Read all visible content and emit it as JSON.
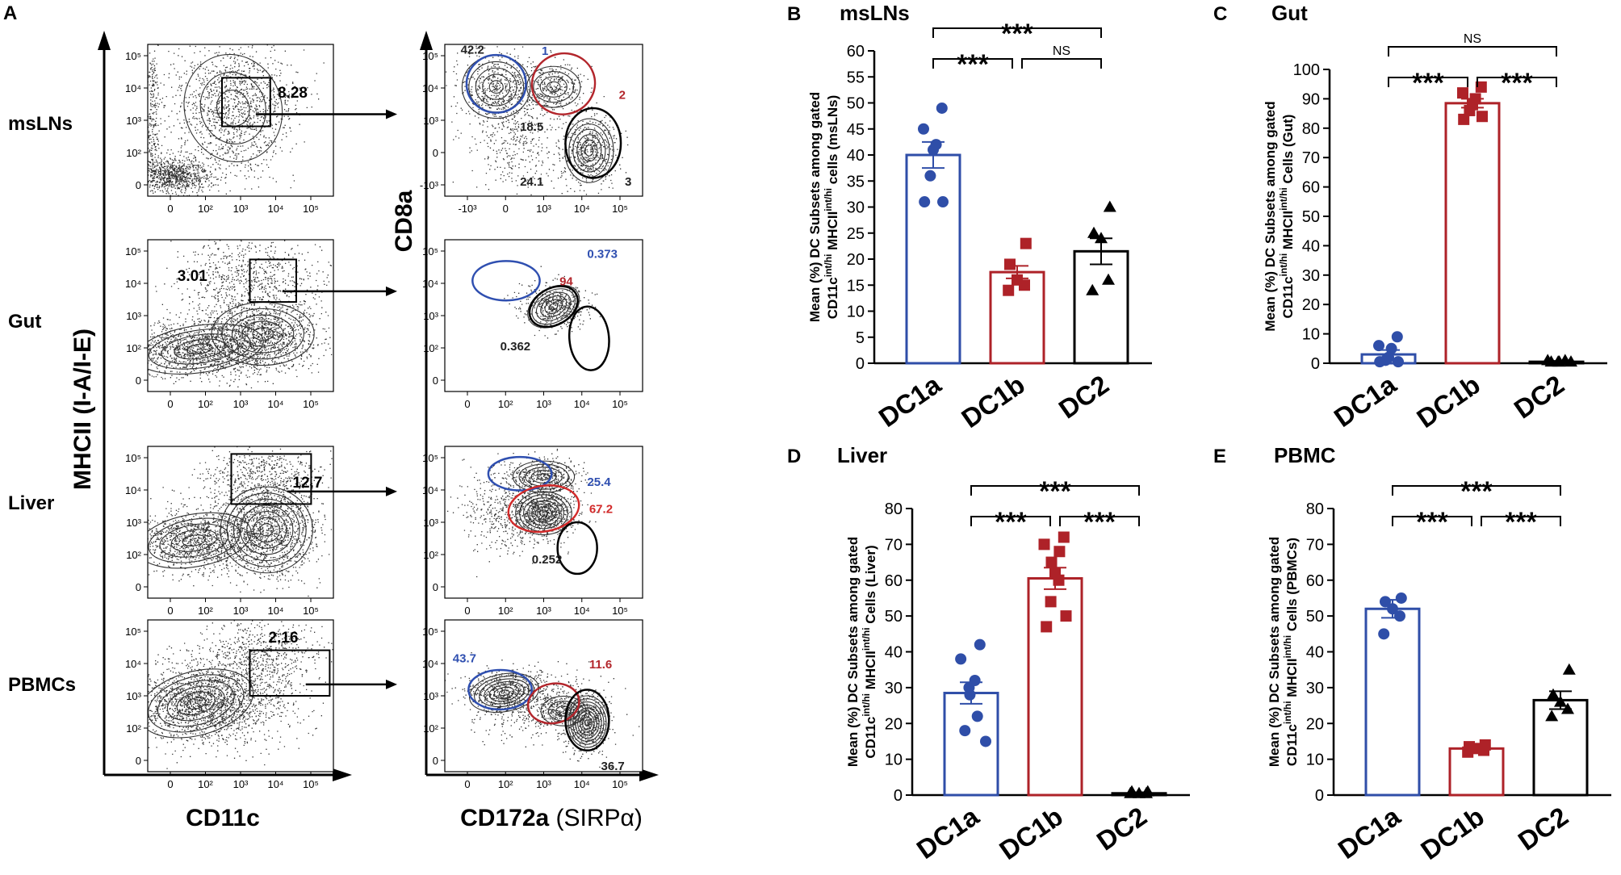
{
  "panel_a": {
    "letter": "A",
    "rows": [
      {
        "tissue": "msLNs",
        "gate_value": "8.28",
        "gates": [
          {
            "value": "42.2",
            "color": "#222222"
          },
          {
            "value": "1",
            "color": "#2f4fb0"
          },
          {
            "value": "2",
            "color": "#b3262c"
          },
          {
            "value": "18.5",
            "color": "#222222"
          },
          {
            "value": "24.1",
            "color": "#222222"
          },
          {
            "value": "3",
            "color": "#222222"
          }
        ]
      },
      {
        "tissue": "Gut",
        "gate_value": "3.01",
        "gates": [
          {
            "value": "0.373",
            "color": "#2f4fb0"
          },
          {
            "value": "94",
            "color": "#b3262c"
          },
          {
            "value": "0.362",
            "color": "#222222"
          }
        ]
      },
      {
        "tissue": "Liver",
        "gate_value": "12.7",
        "gates": [
          {
            "value": "25.4",
            "color": "#2f4fb0"
          },
          {
            "value": "67.2",
            "color": "#d22a2a"
          },
          {
            "value": "0.252",
            "color": "#222222"
          }
        ]
      },
      {
        "tissue": "PBMCs",
        "gate_value": "2.16",
        "gates": [
          {
            "value": "43.7",
            "color": "#2f4fb0"
          },
          {
            "value": "11.6",
            "color": "#b3262c"
          },
          {
            "value": "36.7",
            "color": "#222222"
          }
        ]
      }
    ],
    "left_y_label": "MHCII (I-A/I-E)",
    "left_x_label": "CD11c",
    "right_y_label": "CD8a",
    "right_x_label_bold": "CD172a",
    "right_x_label_normal": "(SIRPα)",
    "left_y_ticks": [
      "10⁵",
      "10⁴",
      "10³",
      "10²",
      "0"
    ],
    "left_x_ticks": [
      "0",
      "10²",
      "10³",
      "10⁴",
      "10⁵"
    ],
    "right_y_ticks_first": [
      "10⁵",
      "10⁴",
      "10³",
      "0",
      "-10³"
    ],
    "right_x_ticks_first": [
      "-10³",
      "0",
      "10³",
      "10⁴",
      "10⁵"
    ],
    "right_y_ticks": [
      "10⁵",
      "10⁴",
      "10³",
      "10²",
      "0"
    ],
    "right_x_ticks": [
      "0",
      "10²",
      "10³",
      "10⁴",
      "10⁵"
    ]
  },
  "chart_data": [
    {
      "type": "bar",
      "letter": "B",
      "title": "msLNs",
      "ylabel_line1": "Mean (%) DC Subsets among gated",
      "ylabel_line2": "CD11c^int/hi MHCII^int/hi cells (msLNs)",
      "categories": [
        "DC1a",
        "DC1b",
        "DC2"
      ],
      "values": [
        40,
        17.5,
        21.5
      ],
      "sem": [
        2.5,
        1.2,
        2.5
      ],
      "points": [
        [
          49,
          45,
          42,
          41,
          36,
          31,
          31
        ],
        [
          23,
          19,
          16,
          15,
          14
        ],
        [
          30,
          25,
          24,
          16,
          14
        ]
      ],
      "markers": [
        "circle",
        "square",
        "triangle"
      ],
      "colors": [
        "#2f4ea8",
        "#ae2228",
        "#000000"
      ],
      "ylim": [
        0,
        60
      ],
      "yticks": [
        0,
        5,
        10,
        15,
        20,
        25,
        30,
        35,
        40,
        45,
        50,
        55,
        60
      ],
      "brackets": [
        {
          "from": 0,
          "to": 1,
          "label": "***"
        },
        {
          "from": 1,
          "to": 2,
          "label": "NS"
        },
        {
          "from": 0,
          "to": 2,
          "label": "***"
        }
      ]
    },
    {
      "type": "bar",
      "letter": "C",
      "title": "Gut",
      "ylabel_line1": "Mean (%) DC Subsets among gated",
      "ylabel_line2": "CD11c^int/hi MHCII^int/hi Cells (Gut)",
      "categories": [
        "DC1a",
        "DC1b",
        "DC2"
      ],
      "values": [
        3,
        88.5,
        0.5
      ],
      "sem": [
        1.5,
        1.5,
        0.3
      ],
      "points": [
        [
          9,
          6,
          5,
          2,
          1,
          0.5,
          0.5
        ],
        [
          94,
          92,
          90,
          88,
          86,
          84,
          83
        ],
        [
          1,
          1,
          0.5,
          0.5,
          0.5,
          0.5
        ]
      ],
      "markers": [
        "circle",
        "square",
        "triangle"
      ],
      "colors": [
        "#2f4ea8",
        "#ae2228",
        "#000000"
      ],
      "ylim": [
        0,
        100
      ],
      "yticks": [
        0,
        10,
        20,
        30,
        40,
        50,
        60,
        70,
        80,
        90,
        100
      ],
      "brackets": [
        {
          "from": 0,
          "to": 1,
          "label": "***"
        },
        {
          "from": 1,
          "to": 2,
          "label": "***"
        },
        {
          "from": 0,
          "to": 2,
          "label": "NS"
        }
      ]
    },
    {
      "type": "bar",
      "letter": "D",
      "title": "Liver",
      "ylabel_line1": "Mean (%) DC Subsets among gated",
      "ylabel_line2": "CD11c^int/hi MHCII^int/hi Cells (Liver)",
      "categories": [
        "DC1a",
        "DC1b",
        "DC2"
      ],
      "values": [
        28.5,
        60.5,
        0.5
      ],
      "sem": [
        3,
        3,
        0.3
      ],
      "points": [
        [
          42,
          38,
          32,
          30,
          28,
          22,
          18,
          15
        ],
        [
          72,
          70,
          68,
          65,
          62,
          60,
          54,
          50,
          47
        ],
        [
          1,
          1,
          0.5,
          0.5,
          0.5
        ]
      ],
      "markers": [
        "circle",
        "square",
        "triangle"
      ],
      "colors": [
        "#2f4ea8",
        "#ae2228",
        "#000000"
      ],
      "ylim": [
        0,
        80
      ],
      "yticks": [
        0,
        10,
        20,
        30,
        40,
        50,
        60,
        70,
        80
      ],
      "brackets": [
        {
          "from": 0,
          "to": 1,
          "label": "***"
        },
        {
          "from": 1,
          "to": 2,
          "label": "***"
        },
        {
          "from": 0,
          "to": 2,
          "label": "***"
        }
      ]
    },
    {
      "type": "bar",
      "letter": "E",
      "title": "PBMC",
      "ylabel_line1": "Mean (%) DC Subsets among gated",
      "ylabel_line2": "CD11c^int/hi MHCII^int/hi Cells (PBMCs)",
      "categories": [
        "DC1a",
        "DC1b",
        "DC2"
      ],
      "values": [
        52,
        13,
        26.5
      ],
      "sem": [
        2.5,
        0.5,
        2.5
      ],
      "points": [
        [
          55,
          54,
          52,
          50,
          45
        ],
        [
          14,
          13.5,
          13,
          12.5,
          12
        ],
        [
          35,
          28,
          26,
          24,
          22
        ]
      ],
      "markers": [
        "circle",
        "square",
        "triangle"
      ],
      "colors": [
        "#2f4ea8",
        "#ae2228",
        "#000000"
      ],
      "ylim": [
        0,
        80
      ],
      "yticks": [
        0,
        10,
        20,
        30,
        40,
        50,
        60,
        70,
        80
      ],
      "brackets": [
        {
          "from": 0,
          "to": 1,
          "label": "***"
        },
        {
          "from": 1,
          "to": 2,
          "label": "***"
        },
        {
          "from": 0,
          "to": 2,
          "label": "***"
        }
      ]
    }
  ]
}
